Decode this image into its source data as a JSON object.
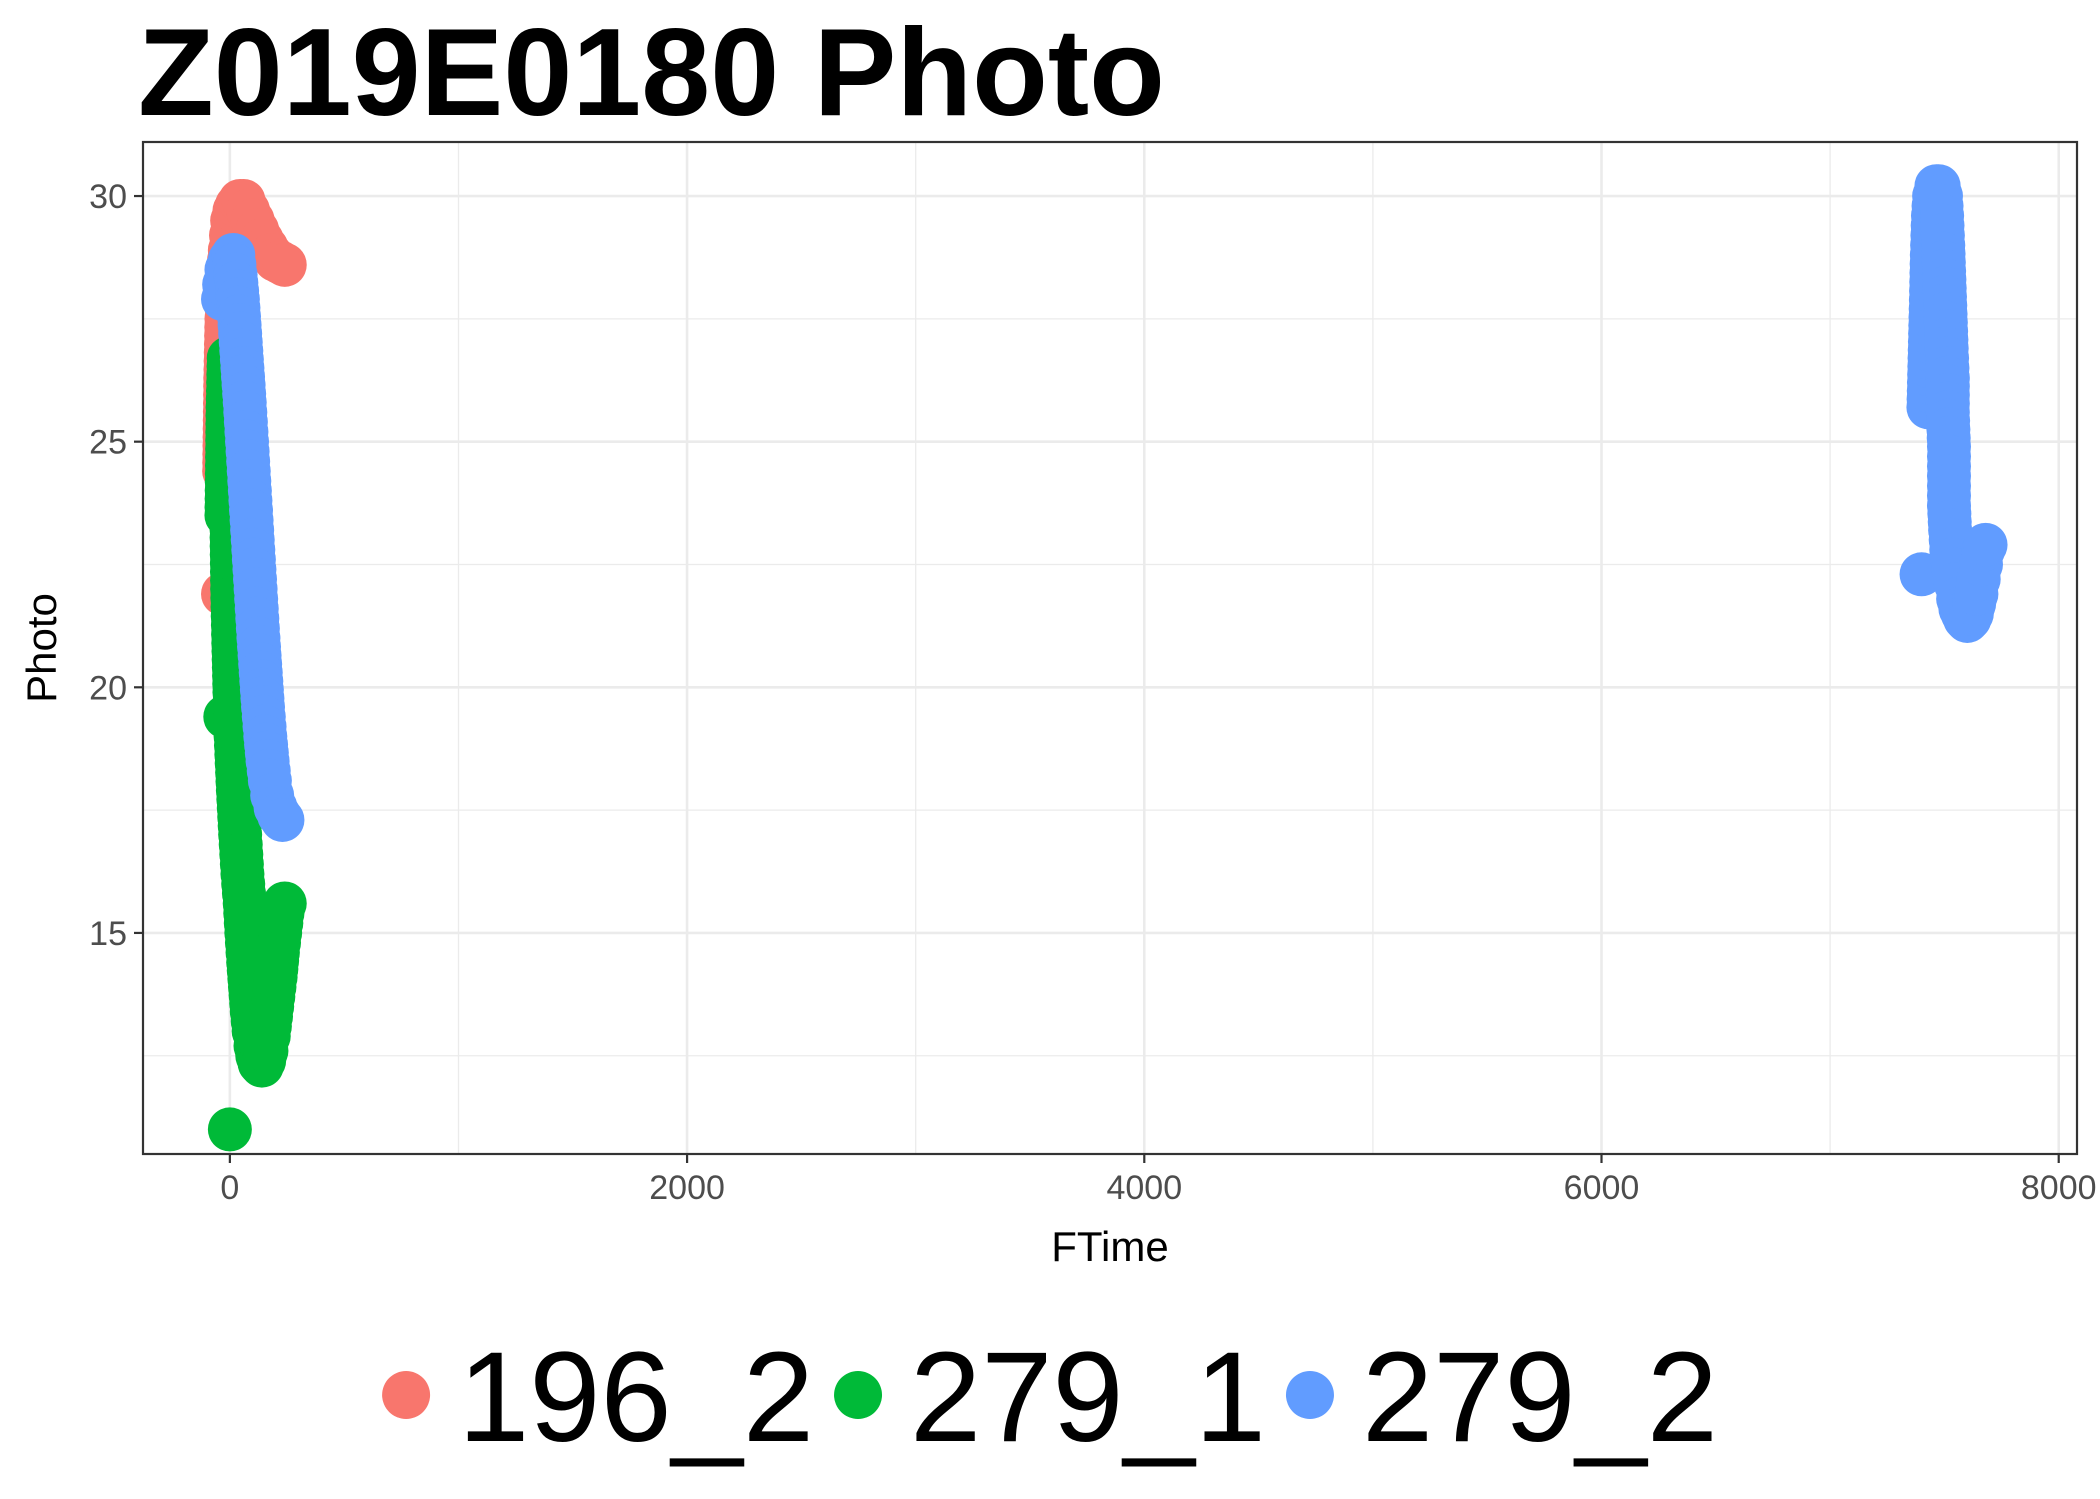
{
  "chart_data": {
    "type": "scatter",
    "title": "Z019E0180 Photo",
    "xlabel": "FTime",
    "ylabel": "Photo",
    "xlim": [
      -380,
      8080
    ],
    "ylim": [
      10.5,
      31.1
    ],
    "x_ticks": [
      0,
      2000,
      4000,
      6000,
      8000
    ],
    "x_tick_labels": [
      "0",
      "2000",
      "4000",
      "6000",
      "8000"
    ],
    "y_ticks": [
      15,
      20,
      25,
      30
    ],
    "y_tick_labels": [
      "15",
      "20",
      "25",
      "30"
    ],
    "grid": true,
    "legend_position": "bottom",
    "series": [
      {
        "name": "196_2",
        "color": "#F8766D",
        "points": [
          [
            -30,
            21.9
          ],
          [
            -25,
            24.4
          ],
          [
            -20,
            26.3
          ],
          [
            -15,
            27.5
          ],
          [
            -10,
            28.3
          ],
          [
            0,
            28.9
          ],
          [
            5,
            29.2
          ],
          [
            10,
            29.5
          ],
          [
            20,
            29.7
          ],
          [
            30,
            29.8
          ],
          [
            45,
            29.9
          ],
          [
            60,
            29.9
          ],
          [
            80,
            29.7
          ],
          [
            100,
            29.5
          ],
          [
            120,
            29.3
          ],
          [
            140,
            29.1
          ],
          [
            160,
            28.95
          ],
          [
            180,
            28.8
          ],
          [
            200,
            28.7
          ],
          [
            220,
            28.65
          ],
          [
            240,
            28.6
          ]
        ]
      },
      {
        "name": "279_1",
        "color": "#00BA38",
        "points": [
          [
            0,
            11.0
          ],
          [
            -20,
            19.4
          ],
          [
            -15,
            23.5
          ],
          [
            -10,
            25.7
          ],
          [
            -5,
            26.7
          ],
          [
            0,
            25.2
          ],
          [
            5,
            24.1
          ],
          [
            10,
            22.0
          ],
          [
            15,
            20.9
          ],
          [
            20,
            19.9
          ],
          [
            25,
            19.0
          ],
          [
            35,
            17.9
          ],
          [
            45,
            17.0
          ],
          [
            55,
            16.2
          ],
          [
            65,
            15.6
          ],
          [
            72,
            15.0
          ],
          [
            80,
            14.4
          ],
          [
            88,
            13.9
          ],
          [
            96,
            13.4
          ],
          [
            104,
            13.0
          ],
          [
            112,
            12.7
          ],
          [
            120,
            12.5
          ],
          [
            130,
            12.35
          ],
          [
            140,
            12.3
          ],
          [
            150,
            12.4
          ],
          [
            160,
            12.6
          ],
          [
            170,
            12.9
          ],
          [
            180,
            13.3
          ],
          [
            190,
            13.7
          ],
          [
            200,
            14.1
          ],
          [
            210,
            14.6
          ],
          [
            220,
            15.0
          ],
          [
            230,
            15.4
          ],
          [
            240,
            15.6
          ]
        ]
      },
      {
        "name": "279_2",
        "color": "#619CFF",
        "points": [
          [
            -30,
            27.9
          ],
          [
            -25,
            28.2
          ],
          [
            -15,
            28.5
          ],
          [
            0,
            28.7
          ],
          [
            15,
            28.8
          ],
          [
            25,
            28.4
          ],
          [
            35,
            27.9
          ],
          [
            45,
            27.2
          ],
          [
            55,
            26.5
          ],
          [
            65,
            25.8
          ],
          [
            75,
            25.0
          ],
          [
            85,
            24.2
          ],
          [
            95,
            23.4
          ],
          [
            105,
            22.6
          ],
          [
            115,
            21.8
          ],
          [
            125,
            21.0
          ],
          [
            135,
            20.3
          ],
          [
            145,
            19.6
          ],
          [
            155,
            19.0
          ],
          [
            165,
            18.5
          ],
          [
            175,
            18.1
          ],
          [
            185,
            17.8
          ],
          [
            200,
            17.55
          ],
          [
            215,
            17.4
          ],
          [
            230,
            17.3
          ],
          [
            7400,
            22.3
          ],
          [
            7430,
            25.7
          ],
          [
            7440,
            27.7
          ],
          [
            7445,
            28.8
          ],
          [
            7450,
            29.6
          ],
          [
            7455,
            30.0
          ],
          [
            7465,
            30.2
          ],
          [
            7475,
            30.2
          ],
          [
            7485,
            30.0
          ],
          [
            7490,
            29.6
          ],
          [
            7495,
            29.0
          ],
          [
            7500,
            28.3
          ],
          [
            7505,
            27.6
          ],
          [
            7510,
            26.9
          ],
          [
            7515,
            26.3
          ],
          [
            7515,
            25.6
          ],
          [
            7520,
            24.9
          ],
          [
            7520,
            24.3
          ],
          [
            7520,
            23.7
          ],
          [
            7525,
            23.2
          ],
          [
            7530,
            22.8
          ],
          [
            7540,
            22.4
          ],
          [
            7550,
            22.1
          ],
          [
            7560,
            21.8
          ],
          [
            7570,
            21.6
          ],
          [
            7580,
            21.5
          ],
          [
            7590,
            21.4
          ],
          [
            7600,
            21.35
          ],
          [
            7610,
            21.4
          ],
          [
            7620,
            21.5
          ],
          [
            7630,
            21.7
          ],
          [
            7640,
            21.9
          ],
          [
            7650,
            22.2
          ],
          [
            7660,
            22.5
          ],
          [
            7670,
            22.8
          ],
          [
            7680,
            22.9
          ]
        ]
      }
    ]
  }
}
